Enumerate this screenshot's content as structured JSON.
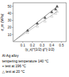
{
  "chart_data": {
    "type": "line",
    "xlabel": "(γ_s)^{1/2} g^{-1/2}",
    "ylabel": "σ_m (MPa)",
    "xlim": [
      0,
      0.55
    ],
    "ylim": [
      0,
      55
    ],
    "xticks": [
      0.1,
      0.2,
      0.3,
      0.4,
      0.5
    ],
    "yticks": [
      10,
      20,
      30,
      40,
      50
    ],
    "grid": false,
    "series": [
      {
        "type": "line",
        "color": "#555555",
        "x": [
          0,
          0.46
        ],
        "values": [
          0,
          50
        ]
      },
      {
        "type": "line",
        "color": "#aaaaaa",
        "x": [
          0,
          0.46
        ],
        "values": [
          0,
          43
        ]
      },
      {
        "type": "scatter",
        "marker": "triangle",
        "color": "#555555",
        "x": [
          0.15,
          0.25,
          0.33,
          0.4,
          0.44,
          0.455
        ],
        "values": [
          16,
          26,
          34,
          42,
          46,
          50
        ]
      },
      {
        "type": "scatter",
        "marker": "triangle-open",
        "color": "#aaaaaa",
        "x": [
          0.15,
          0.25,
          0.33,
          0.4,
          0.44,
          0.455
        ],
        "values": [
          13,
          22,
          29,
          36,
          40,
          43
        ]
      }
    ],
    "annotations": [
      "Al-Ag alloy",
      "tempering temperature 140 °C",
      "+ test at 196 °C",
      "△  test at 20 °C"
    ]
  }
}
